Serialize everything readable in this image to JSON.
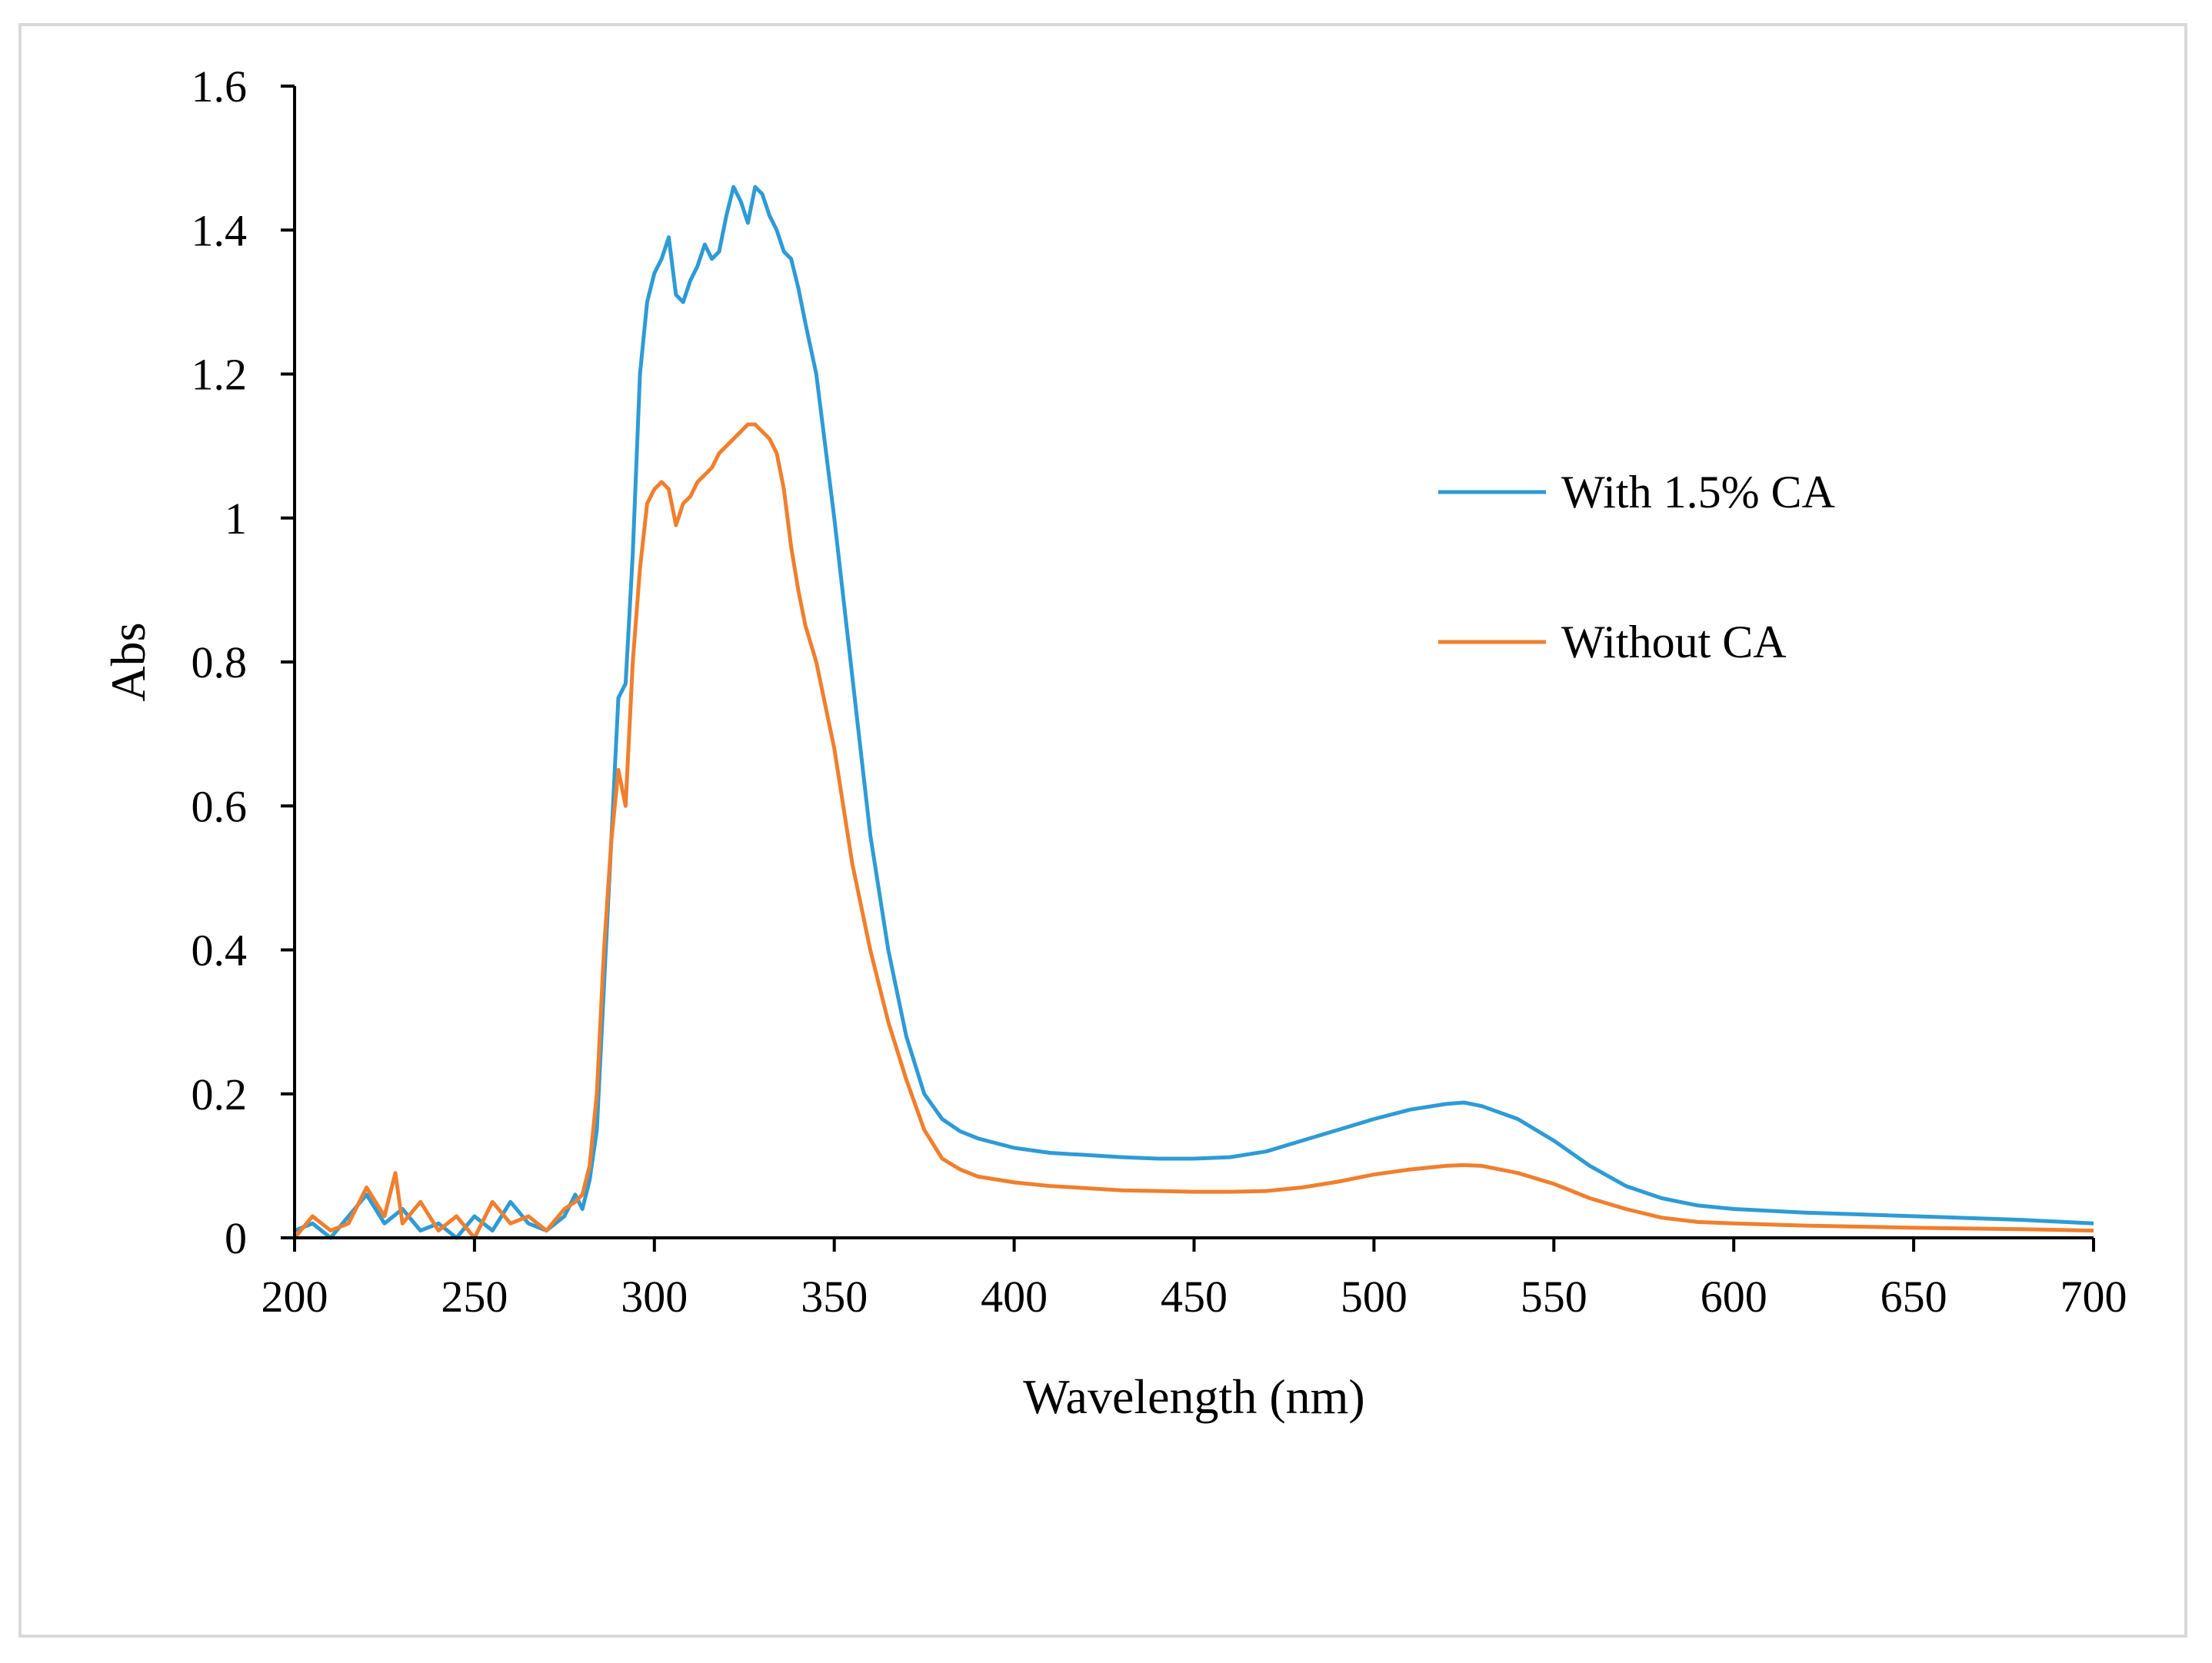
{
  "chart_data": {
    "type": "line",
    "title": "",
    "xlabel": "Wavelength (nm)",
    "ylabel": "Abs",
    "xlim": [
      200,
      700
    ],
    "ylim": [
      0,
      1.6
    ],
    "x_ticks": [
      "200",
      "250",
      "300",
      "350",
      "400",
      "450",
      "500",
      "550",
      "600",
      "650",
      "700"
    ],
    "y_ticks": [
      "0",
      "0.2",
      "0.4",
      "0.6",
      "0.8",
      "1",
      "1.2",
      "1.4",
      "1.6"
    ],
    "grid": false,
    "legend_position": "right",
    "series": [
      {
        "name": "With 1.5% CA",
        "color": "#2e9bd6",
        "x": [
          200,
          205,
          210,
          215,
          220,
          225,
          230,
          235,
          240,
          245,
          250,
          255,
          260,
          265,
          270,
          275,
          278,
          280,
          282,
          284,
          286,
          288,
          290,
          292,
          294,
          296,
          298,
          300,
          302,
          304,
          306,
          308,
          310,
          312,
          314,
          316,
          318,
          320,
          322,
          324,
          326,
          328,
          330,
          332,
          334,
          336,
          338,
          340,
          342,
          345,
          350,
          355,
          360,
          365,
          370,
          375,
          380,
          385,
          390,
          400,
          410,
          420,
          430,
          440,
          450,
          460,
          470,
          480,
          490,
          500,
          510,
          520,
          525,
          530,
          540,
          550,
          560,
          570,
          580,
          590,
          600,
          620,
          650,
          680,
          700
        ],
        "y": [
          0.01,
          0.02,
          0.0,
          0.03,
          0.06,
          0.02,
          0.04,
          0.01,
          0.02,
          0.0,
          0.03,
          0.01,
          0.05,
          0.02,
          0.01,
          0.03,
          0.06,
          0.04,
          0.08,
          0.15,
          0.35,
          0.55,
          0.75,
          0.77,
          0.95,
          1.2,
          1.3,
          1.34,
          1.36,
          1.39,
          1.31,
          1.3,
          1.33,
          1.35,
          1.38,
          1.36,
          1.37,
          1.42,
          1.46,
          1.44,
          1.41,
          1.46,
          1.45,
          1.42,
          1.4,
          1.37,
          1.36,
          1.32,
          1.27,
          1.2,
          1.0,
          0.78,
          0.56,
          0.4,
          0.28,
          0.2,
          0.165,
          0.148,
          0.138,
          0.125,
          0.118,
          0.115,
          0.112,
          0.11,
          0.11,
          0.112,
          0.12,
          0.135,
          0.15,
          0.165,
          0.178,
          0.186,
          0.188,
          0.183,
          0.165,
          0.135,
          0.1,
          0.072,
          0.055,
          0.045,
          0.04,
          0.035,
          0.03,
          0.025,
          0.02
        ]
      },
      {
        "name": "Without CA",
        "color": "#f07f2e",
        "x": [
          200,
          205,
          210,
          215,
          220,
          225,
          228,
          230,
          235,
          240,
          245,
          250,
          255,
          260,
          265,
          270,
          275,
          278,
          280,
          282,
          284,
          286,
          288,
          290,
          292,
          294,
          296,
          298,
          300,
          302,
          304,
          306,
          308,
          310,
          312,
          314,
          316,
          318,
          320,
          322,
          324,
          326,
          328,
          330,
          332,
          334,
          336,
          338,
          340,
          342,
          345,
          350,
          355,
          360,
          365,
          370,
          375,
          380,
          385,
          390,
          400,
          410,
          420,
          430,
          440,
          450,
          460,
          470,
          480,
          490,
          500,
          510,
          520,
          525,
          530,
          540,
          550,
          560,
          570,
          580,
          590,
          600,
          620,
          650,
          680,
          700
        ],
        "y": [
          0.0,
          0.03,
          0.01,
          0.02,
          0.07,
          0.03,
          0.09,
          0.02,
          0.05,
          0.01,
          0.03,
          0.0,
          0.05,
          0.02,
          0.03,
          0.01,
          0.04,
          0.05,
          0.06,
          0.1,
          0.2,
          0.4,
          0.55,
          0.65,
          0.6,
          0.8,
          0.93,
          1.02,
          1.04,
          1.05,
          1.04,
          0.99,
          1.02,
          1.03,
          1.05,
          1.06,
          1.07,
          1.09,
          1.1,
          1.11,
          1.12,
          1.13,
          1.13,
          1.12,
          1.11,
          1.09,
          1.04,
          0.96,
          0.9,
          0.85,
          0.8,
          0.68,
          0.52,
          0.4,
          0.3,
          0.22,
          0.15,
          0.11,
          0.095,
          0.085,
          0.077,
          0.072,
          0.069,
          0.066,
          0.065,
          0.064,
          0.064,
          0.065,
          0.07,
          0.078,
          0.088,
          0.095,
          0.1,
          0.101,
          0.1,
          0.09,
          0.075,
          0.055,
          0.04,
          0.028,
          0.022,
          0.02,
          0.017,
          0.014,
          0.012,
          0.01
        ]
      }
    ]
  }
}
